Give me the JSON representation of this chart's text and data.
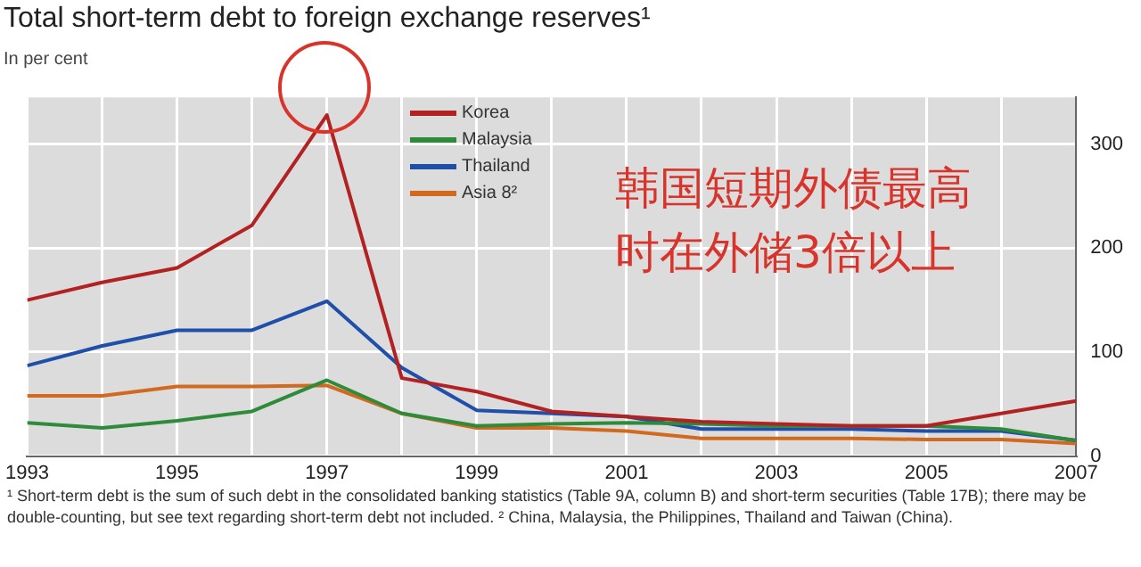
{
  "chart_data": {
    "type": "line",
    "title": "Total short-term debt to foreign exchange reserves¹",
    "ylabel": "In per cent",
    "x": [
      1993,
      1994,
      1995,
      1996,
      1997,
      1998,
      1999,
      2000,
      2001,
      2002,
      2003,
      2004,
      2005,
      2006,
      2007
    ],
    "series": [
      {
        "name": "Korea",
        "color": "#b22222",
        "values": [
          150,
          167,
          181,
          222,
          328,
          75,
          62,
          43,
          38,
          33,
          31,
          29,
          29,
          41,
          53
        ]
      },
      {
        "name": "Malaysia",
        "color": "#2e8b3a",
        "values": [
          32,
          27,
          34,
          43,
          73,
          41,
          29,
          31,
          32,
          31,
          29,
          29,
          29,
          26,
          15
        ]
      },
      {
        "name": "Thailand",
        "color": "#1f4fa8",
        "values": [
          87,
          106,
          121,
          121,
          149,
          85,
          44,
          41,
          38,
          26,
          26,
          26,
          24,
          24,
          15
        ]
      },
      {
        "name": "Asia 8²",
        "color": "#d2691e",
        "values": [
          58,
          58,
          67,
          67,
          68,
          41,
          27,
          27,
          24,
          17,
          17,
          17,
          16,
          16,
          12
        ]
      }
    ],
    "xlim": [
      1993,
      2007
    ],
    "xticks": [
      1993,
      {
        "value": 1994,
        "label": null
      },
      1995,
      {
        "value": 1996,
        "label": null
      },
      1997,
      {
        "value": 1998,
        "label": null
      },
      1999,
      {
        "value": 2000,
        "label": null
      },
      2001,
      {
        "value": 2002,
        "label": null
      },
      2003,
      {
        "value": 2004,
        "label": null
      },
      2005,
      {
        "value": 2006,
        "label": null
      },
      2007
    ],
    "ylim": [
      0,
      345
    ],
    "yticks": [
      0,
      100,
      200,
      300
    ],
    "grid": true,
    "legend": "top",
    "marker": "none",
    "line_style": "solid",
    "annotations": [
      "韩国短期外债最高时在外储3倍以上",
      "¹ Short-term debt is the sum of such debt in the consolidated banking statistics (Table 9A, column B) and short-term securities (Table 17B); there may be double-counting, but see text regarding short-term debt not included.  ² China, Malaysia, the Philippines, Thailand and Taiwan (China)."
    ]
  }
}
